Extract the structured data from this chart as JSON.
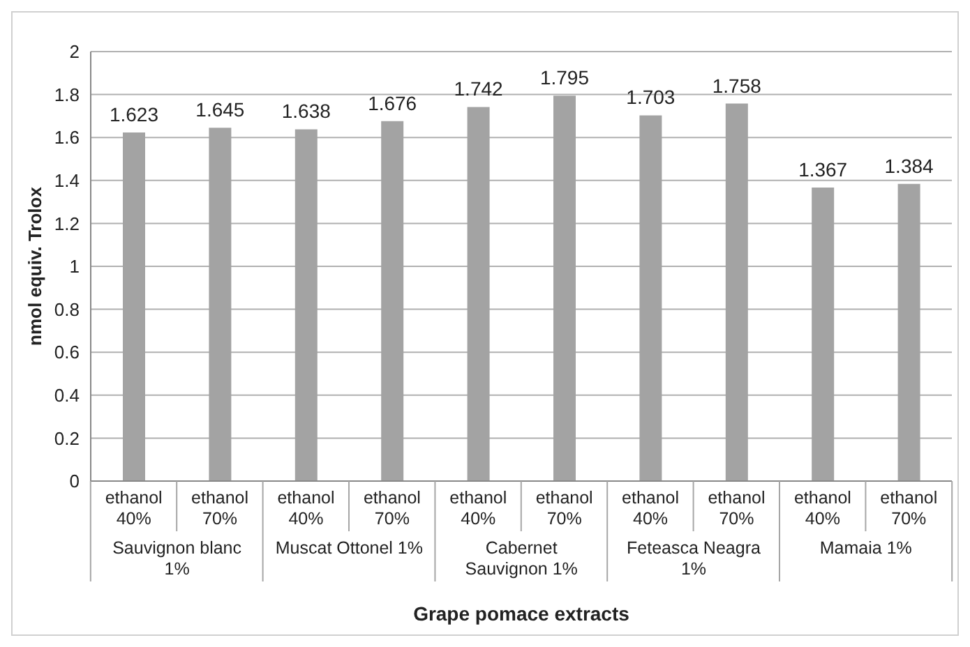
{
  "chart_data": {
    "type": "bar",
    "xlabel": "Grape pomace extracts",
    "ylabel": "nmol equiv. Trolox",
    "categories": [
      "ethanol 40%",
      "ethanol 70%",
      "ethanol 40%",
      "ethanol 70%",
      "ethanol 40%",
      "ethanol 70%",
      "ethanol 40%",
      "ethanol 70%",
      "ethanol 40%",
      "ethanol 70%"
    ],
    "values": [
      1.623,
      1.645,
      1.638,
      1.676,
      1.742,
      1.795,
      1.703,
      1.758,
      1.367,
      1.384
    ],
    "color": "#a3a3a3",
    "annotations": [
      "Sauvignon blanc 1%",
      "Muscat Ottonel 1%",
      "Cabernet Sauvignon 1%",
      "Feteasca Neagra 1%",
      "Mamaia 1%"
    ],
    "ylim": [
      0,
      2
    ],
    "yticks": [
      0,
      0.2,
      0.4,
      0.6,
      0.8,
      1,
      1.2,
      1.4,
      1.6,
      1.8,
      2
    ],
    "grid": "y",
    "data_labels": true,
    "legend": false
  }
}
